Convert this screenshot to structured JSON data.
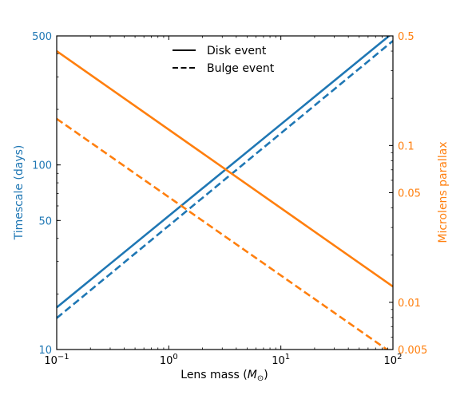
{
  "chart_data": {
    "type": "line",
    "x_scale": "log",
    "y_left_scale": "log",
    "y_right_scale": "log",
    "xlim": [
      0.1,
      100
    ],
    "y_left_lim": [
      10,
      500
    ],
    "y_right_lim": [
      0.005,
      0.5
    ],
    "xlabel_main": "Lens mass (",
    "xlabel_symbol": "M",
    "xlabel_subscript": "⊙",
    "xlabel_close": ")",
    "ylabel_left": "Timescale (days)",
    "ylabel_right": "Microlens parallax",
    "x_ticks": [
      {
        "value": 0.1,
        "base": "10",
        "exp": "−1"
      },
      {
        "value": 1,
        "base": "10",
        "exp": "0"
      },
      {
        "value": 10,
        "base": "10",
        "exp": "1"
      },
      {
        "value": 100,
        "base": "10",
        "exp": "2"
      }
    ],
    "y_left_ticks": [
      {
        "value": 10,
        "label": "10"
      },
      {
        "value": 50,
        "label": "50"
      },
      {
        "value": 100,
        "label": "100"
      },
      {
        "value": 500,
        "label": "500"
      }
    ],
    "y_right_ticks": [
      {
        "value": 0.005,
        "label": "0.005"
      },
      {
        "value": 0.01,
        "label": "0.01"
      },
      {
        "value": 0.05,
        "label": "0.05"
      },
      {
        "value": 0.1,
        "label": "0.1"
      },
      {
        "value": 0.5,
        "label": "0.5"
      }
    ],
    "legend": [
      {
        "label": "Disk event",
        "style": "solid"
      },
      {
        "label": "Bulge event",
        "style": "dashed"
      }
    ],
    "legend_position": "top-center",
    "grid": false,
    "colors": {
      "timescale": "#1f77b4",
      "parallax": "#ff7f0e"
    },
    "series": [
      {
        "quantity": "Timescale",
        "event": "Disk",
        "axis": "left",
        "style": "solid",
        "color": "#1f77b4",
        "x": [
          0.1,
          100
        ],
        "y": [
          16.9,
          520
        ]
      },
      {
        "quantity": "Timescale",
        "event": "Bulge",
        "axis": "left",
        "style": "dashed",
        "color": "#1f77b4",
        "x": [
          0.1,
          100
        ],
        "y": [
          14.8,
          470
        ]
      },
      {
        "quantity": "Microlens parallax",
        "event": "Disk",
        "axis": "right",
        "style": "solid",
        "color": "#ff7f0e",
        "x": [
          0.1,
          100
        ],
        "y": [
          0.4,
          0.0126
        ]
      },
      {
        "quantity": "Microlens parallax",
        "event": "Bulge",
        "axis": "right",
        "style": "dashed",
        "color": "#ff7f0e",
        "x": [
          0.1,
          100
        ],
        "y": [
          0.148,
          0.0047
        ]
      }
    ]
  }
}
